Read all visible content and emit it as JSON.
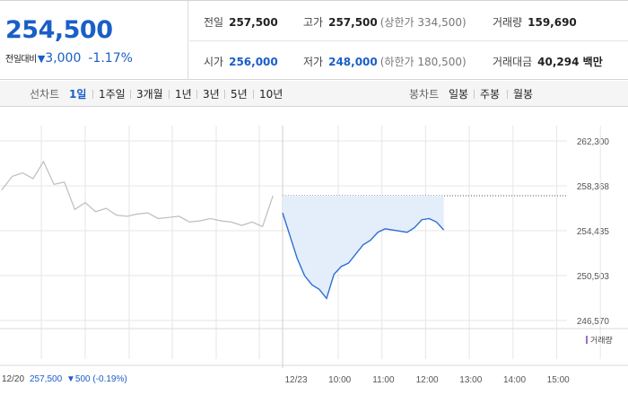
{
  "header": {
    "price": "254,500",
    "change_label": "전일대비",
    "change_arrow": "▼",
    "change_value": "3,000",
    "change_pct": "‑1.17%",
    "prev_close": {
      "label": "전일",
      "value": "257,500"
    },
    "high": {
      "label": "고가",
      "value": "257,500",
      "sub": "(상한가 334,500)"
    },
    "volume": {
      "label": "거래량",
      "value": "159,690"
    },
    "open": {
      "label": "시가",
      "value": "256,000"
    },
    "low": {
      "label": "저가",
      "value": "248,000",
      "sub": "(하한가 180,500)"
    },
    "amount": {
      "label": "거래대금",
      "value": "40,294 백만"
    }
  },
  "period_bar": {
    "line_label": "선차트",
    "line_items": [
      "1일",
      "1주일",
      "3개월",
      "1년",
      "3년",
      "5년",
      "10년"
    ],
    "candle_label": "봉차트",
    "candle_items": [
      "일봉",
      "주봉",
      "월봉"
    ]
  },
  "colors": {
    "accent": "#1a5ec8",
    "line_today": "#2d6fd6",
    "fill_today": "#e4eefb",
    "line_prev": "#bdbdbd",
    "grid": "#e6e6e6"
  },
  "chart_data": {
    "type": "line",
    "y_ticks": [
      "262,300",
      "258,368",
      "254,435",
      "250,503",
      "246,570"
    ],
    "ylim": [
      246570,
      262300
    ],
    "reference_line": 257500,
    "x_ticks": [
      "12/23",
      "10:00",
      "11:00",
      "12:00",
      "13:00",
      "14:00",
      "15:00"
    ],
    "legend": "거래량",
    "prev_day_label": "12/20",
    "prev_day_close": "257,500",
    "prev_day_change": "▼500 (‑0.19%)",
    "series": [
      {
        "date": "12/20",
        "x": [
          "09:00",
          "09:15",
          "09:30",
          "09:45",
          "10:00",
          "10:15",
          "10:30",
          "10:45",
          "11:00",
          "11:15",
          "11:30",
          "11:45",
          "12:00",
          "12:15",
          "12:30",
          "12:45",
          "13:00",
          "13:15",
          "13:30",
          "13:45",
          "14:00",
          "14:15",
          "14:30",
          "14:45",
          "15:00",
          "15:15",
          "15:30"
        ],
        "values": [
          258000,
          259200,
          259500,
          259000,
          260500,
          258500,
          258700,
          256300,
          256900,
          256100,
          256400,
          255800,
          255700,
          255900,
          256000,
          255500,
          255600,
          255700,
          255200,
          255300,
          255500,
          255300,
          255200,
          254900,
          255200,
          254800,
          257500
        ]
      },
      {
        "date": "12/23",
        "x": [
          "09:00",
          "09:10",
          "09:20",
          "09:30",
          "09:40",
          "09:50",
          "10:00",
          "10:10",
          "10:20",
          "10:30",
          "10:40",
          "10:50",
          "11:00",
          "11:10",
          "11:20",
          "11:30",
          "11:40",
          "11:50",
          "12:00",
          "12:10",
          "12:20",
          "12:30",
          "12:40"
        ],
        "values": [
          256000,
          254000,
          252000,
          250500,
          249700,
          249300,
          248500,
          250600,
          251300,
          251600,
          252400,
          253200,
          253600,
          254300,
          254600,
          254500,
          254400,
          254300,
          254700,
          255400,
          255500,
          255200,
          254500
        ]
      }
    ]
  }
}
